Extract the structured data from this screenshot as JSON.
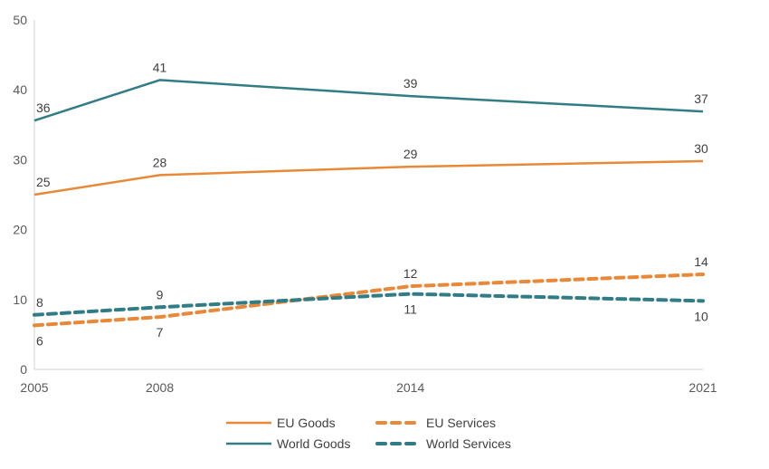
{
  "chart_data": {
    "type": "line",
    "title": "",
    "xlabel": "",
    "ylabel": "",
    "categories": [
      "2005",
      "2008",
      "2014",
      "2021"
    ],
    "ylim": [
      0,
      50
    ],
    "yticks": [
      0,
      10,
      20,
      30,
      40,
      50
    ],
    "grid": false,
    "legend_position": "bottom",
    "series": [
      {
        "name": "EU Goods",
        "values": [
          25.0,
          27.8,
          29.0,
          29.8
        ],
        "labels": [
          "25",
          "28",
          "29",
          "30"
        ],
        "color": "#E8893A",
        "dashed": false,
        "label_pos": [
          "above",
          "above",
          "above",
          "above"
        ]
      },
      {
        "name": "World Goods",
        "values": [
          35.6,
          41.4,
          39.1,
          36.9
        ],
        "labels": [
          "36",
          "41",
          "39",
          "37"
        ],
        "color": "#327C85",
        "dashed": false,
        "label_pos": [
          "above",
          "above",
          "above",
          "above"
        ]
      },
      {
        "name": "EU Services",
        "values": [
          6.3,
          7.5,
          11.9,
          13.6
        ],
        "labels": [
          "6",
          "7",
          "12",
          "14"
        ],
        "color": "#E8893A",
        "dashed": true,
        "label_pos": [
          "below",
          "below",
          "above",
          "above"
        ]
      },
      {
        "name": "World Services",
        "values": [
          7.8,
          8.9,
          10.8,
          9.8
        ],
        "labels": [
          "8",
          "9",
          "11",
          "10"
        ],
        "color": "#327C85",
        "dashed": true,
        "label_pos": [
          "above",
          "above",
          "below",
          "below"
        ]
      }
    ],
    "legend": [
      {
        "name": "EU Goods",
        "color": "#E8893A",
        "dashed": false
      },
      {
        "name": "EU Services",
        "color": "#E8893A",
        "dashed": true
      },
      {
        "name": "World Goods",
        "color": "#327C85",
        "dashed": false
      },
      {
        "name": "World Services",
        "color": "#327C85",
        "dashed": true
      }
    ]
  }
}
